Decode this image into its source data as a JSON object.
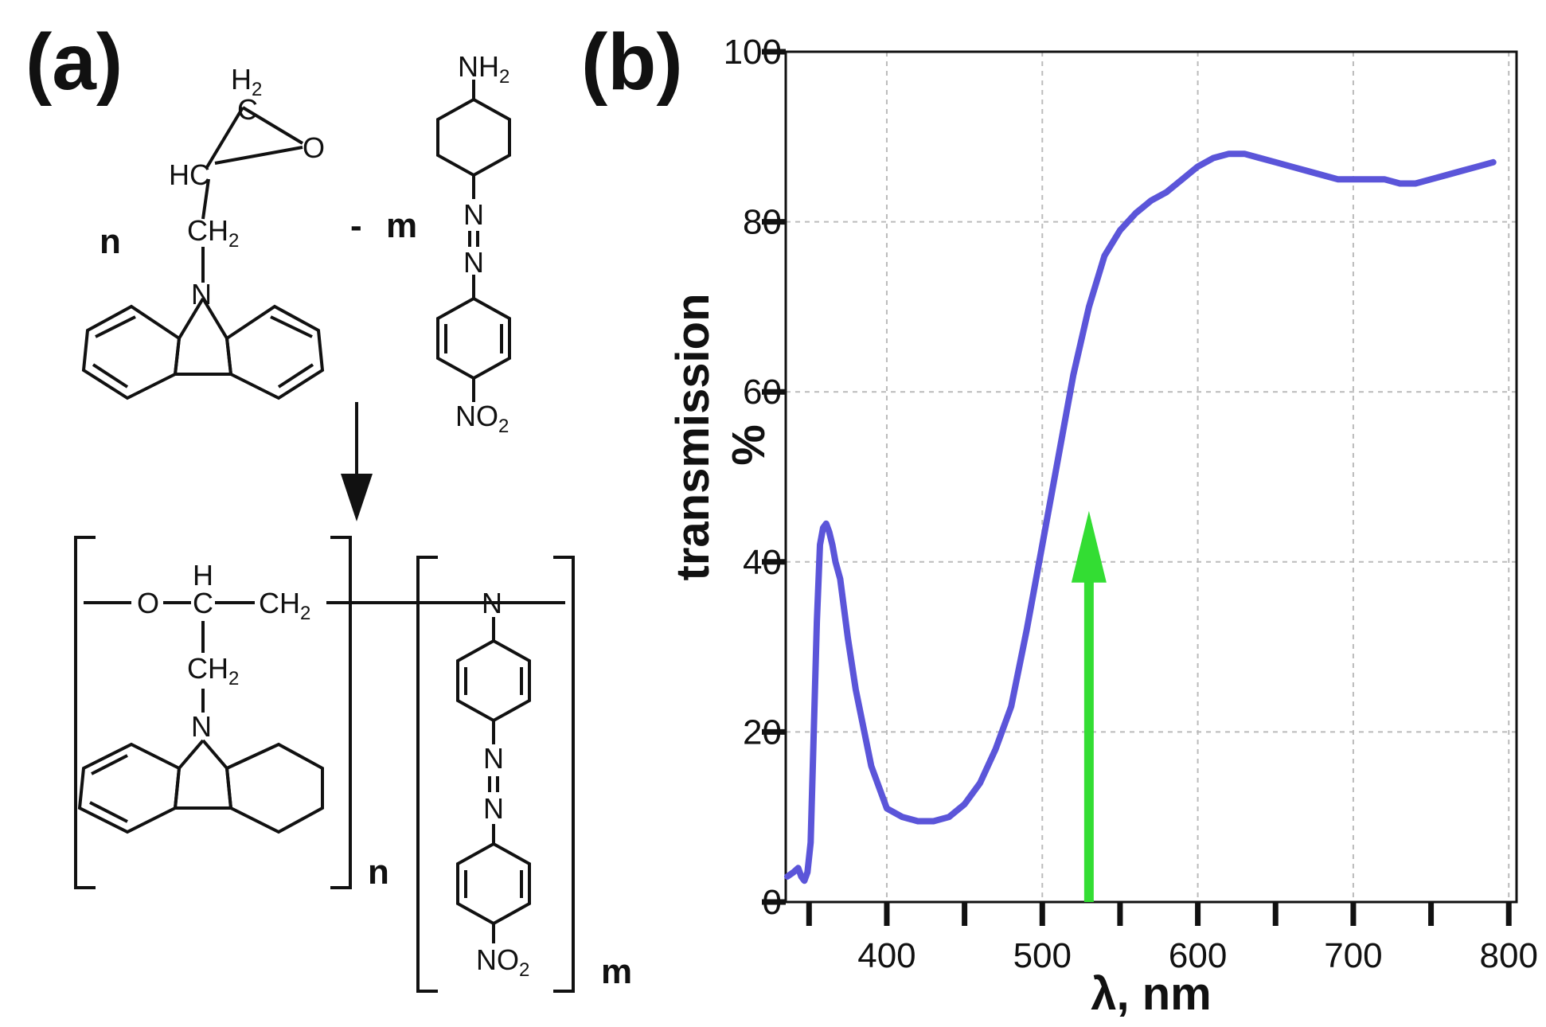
{
  "panels": {
    "a_label": "(a)",
    "b_label": "(b)"
  },
  "scheme": {
    "reactant1": {
      "coefficient": "n",
      "atoms": {
        "ch2_top": "H",
        "ch2_top_sub": "2",
        "ch2_top_c": "C",
        "hc": "HC",
        "oxygen": "O",
        "ch2": "CH",
        "ch2_sub": "2",
        "nitrogen": "N"
      }
    },
    "minus_sign": "-",
    "reactant2": {
      "coefficient": "m",
      "atoms": {
        "nh2": "NH",
        "nh2_sub": "2",
        "n1": "N",
        "n2": "N",
        "no2": "NO",
        "no2_sub": "2"
      }
    },
    "product": {
      "atoms": {
        "o": "O",
        "h": "H",
        "c": "C",
        "ch2_chain": "CH",
        "ch2_chain_sub": "2",
        "ch2_side": "CH",
        "ch2_side_sub": "2",
        "n_carbazole": "N",
        "n_amine": "N",
        "n_azo1": "N",
        "n_azo2": "N",
        "no2": "NO",
        "no2_sub": "2"
      },
      "index_n": "n",
      "index_m": "m"
    }
  },
  "chart_data": {
    "type": "line",
    "title": "",
    "xlabel": "λ, nm",
    "ylabel_line1": "transmission",
    "ylabel_line2": "%",
    "xlim": [
      335,
      805
    ],
    "ylim": [
      0,
      100
    ],
    "x_ticks": [
      400,
      500,
      600,
      700,
      800
    ],
    "y_ticks": [
      0,
      20,
      40,
      60,
      80,
      100
    ],
    "grid": true,
    "line_color": "#5b55d9",
    "arrow_color": "#33dd33",
    "series": [
      {
        "x": [
          336,
          340,
          343,
          345,
          347,
          349,
          351,
          353,
          355,
          357,
          359,
          361,
          363,
          365,
          367,
          370,
          375,
          380,
          390,
          400,
          410,
          420,
          430,
          440,
          450,
          460,
          470,
          480,
          490,
          500,
          510,
          520,
          530,
          540,
          550,
          560,
          570,
          580,
          590,
          600,
          610,
          620,
          630,
          640,
          650,
          660,
          670,
          680,
          690,
          700,
          710,
          720,
          730,
          740,
          750,
          760,
          770,
          780,
          790
        ],
        "y": [
          3,
          3.5,
          4,
          3,
          2.5,
          3.5,
          7,
          20,
          33,
          42,
          44,
          44.5,
          43.5,
          42,
          40,
          38,
          31,
          25,
          16,
          11,
          10,
          9.5,
          9.5,
          10,
          11.5,
          14,
          18,
          23,
          32,
          42,
          52,
          62,
          70,
          76,
          79,
          81,
          82.5,
          83.5,
          85,
          86.5,
          87.5,
          88,
          88,
          87.5,
          87,
          86.5,
          86,
          85.5,
          85,
          85,
          85,
          85,
          84.5,
          84.5,
          85,
          85.5,
          86,
          86.5,
          87
        ]
      }
    ],
    "annotation_arrow": {
      "x": 530,
      "y_from": 0,
      "y_to": 46
    }
  }
}
